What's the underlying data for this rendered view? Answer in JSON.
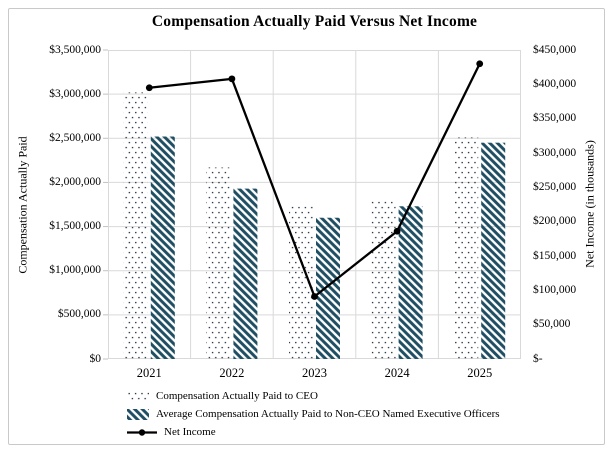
{
  "frame": {
    "border_color": "#c9c9c9",
    "background": "#ffffff"
  },
  "chart_data": {
    "type": "combo-bar-line",
    "title": "Compensation Actually Paid Versus Net Income",
    "categories": [
      "2021",
      "2022",
      "2023",
      "2024",
      "2025"
    ],
    "series": [
      {
        "name": "Compensation Actually Paid to CEO",
        "type": "bar",
        "axis": "left",
        "pattern": "dots",
        "color": "#21303F",
        "values": [
          3020000,
          2170000,
          1760000,
          1800000,
          2510000
        ]
      },
      {
        "name": "Average Compensation Actually Paid to Non-CEO Named Executive Officers",
        "type": "bar",
        "axis": "left",
        "pattern": "diagonal-stripes",
        "color": "#1F4E63",
        "values": [
          2520000,
          1930000,
          1600000,
          1730000,
          2450000
        ]
      },
      {
        "name": "Net Income",
        "type": "line",
        "axis": "right",
        "marker": "circle",
        "color": "#000000",
        "values": [
          395000,
          408000,
          91000,
          186000,
          430000
        ]
      }
    ],
    "left_axis": {
      "title": "Compensation Actually Paid",
      "min": 0,
      "max": 3500000,
      "step": 500000,
      "tick_labels": [
        "$0",
        "$500,000",
        "$1,000,000",
        "$1,500,000",
        "$2,000,000",
        "$2,500,000",
        "$3,000,000",
        "$3,500,000"
      ]
    },
    "right_axis": {
      "title": "Net Income (in thousands)",
      "min": 0,
      "max": 450000,
      "step": 50000,
      "tick_labels": [
        "$-",
        "$50,000",
        "$100,000",
        "$150,000",
        "$200,000",
        "$250,000",
        "$300,000",
        "$350,000",
        "$400,000",
        "$450,000"
      ]
    },
    "x_axis": {
      "tick_labels": [
        "2021",
        "2022",
        "2023",
        "2024",
        "2025"
      ]
    },
    "legend": {
      "position": "bottom-left",
      "entries": [
        "Compensation Actually Paid to CEO",
        "Average Compensation Actually Paid to Non-CEO Named Executive Officers",
        "Net Income"
      ]
    },
    "grid": {
      "horizontal": true,
      "vertical": true,
      "color": "#D9D9D9"
    }
  }
}
